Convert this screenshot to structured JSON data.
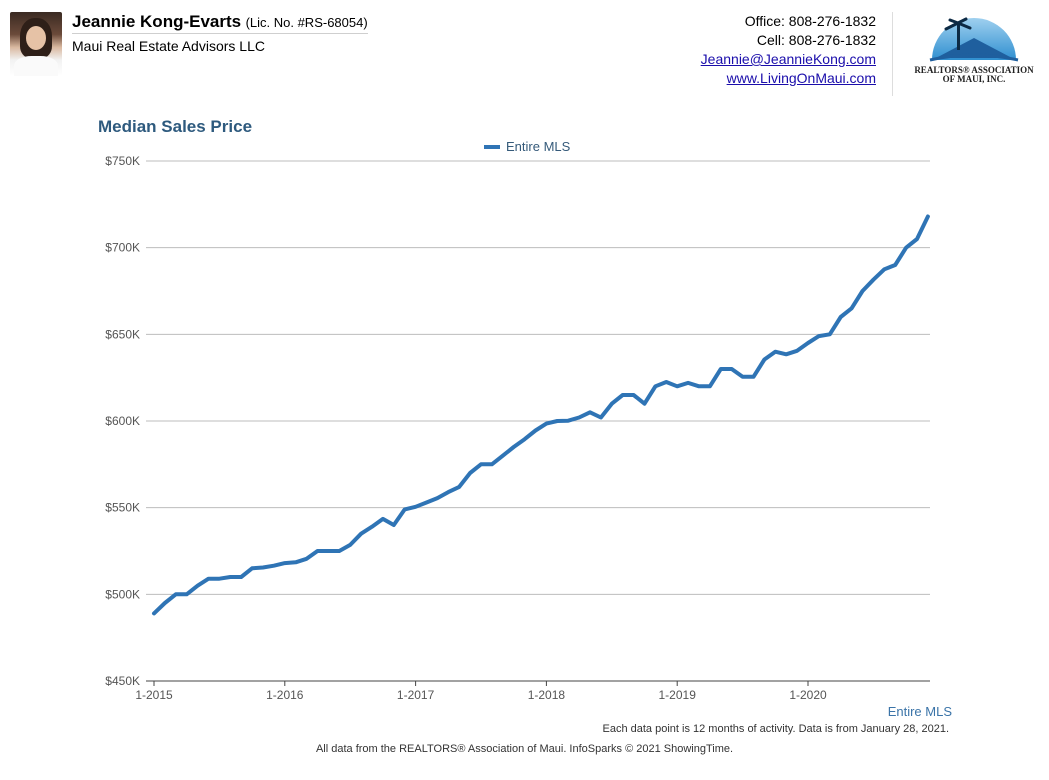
{
  "header": {
    "agent_name": "Jeannie Kong-Evarts",
    "license": "(Lic. No. #RS-68054)",
    "company": "Maui Real Estate Advisors LLC",
    "office": "Office: 808-276-1832",
    "cell": "Cell: 808-276-1832",
    "email": "Jeannie@JeannieKong.com",
    "website": "www.LivingOnMaui.com",
    "association_line1": "REALTORS® ASSOCIATION",
    "association_line2": "OF MAUI, INC."
  },
  "series_label": "Entire MLS",
  "footnote": "Each data point is 12 months of activity. Data is from January 28, 2021.",
  "footer": "All data from the REALTORS® Association of Maui. InfoSparks © 2021 ShowingTime.",
  "colors": {
    "line": "#2f74b5",
    "title": "#2e5a7e",
    "grid": "#bdbdbd"
  },
  "chart_data": {
    "type": "line",
    "title": "Median Sales Price",
    "xlabel": "",
    "ylabel": "",
    "ylim": [
      450000,
      750000
    ],
    "yticks": [
      450000,
      500000,
      550000,
      600000,
      650000,
      700000,
      750000
    ],
    "ytick_labels": [
      "$450K",
      "$500K",
      "$550K",
      "$600K",
      "$650K",
      "$700K",
      "$750K"
    ],
    "xticks": [
      "1-2015",
      "1-2016",
      "1-2017",
      "1-2018",
      "1-2019",
      "1-2020"
    ],
    "x_start": "1-2015",
    "grid": true,
    "legend": "top-center",
    "series": [
      {
        "name": "Entire MLS",
        "x": [
          "1-2015",
          "2-2015",
          "3-2015",
          "4-2015",
          "5-2015",
          "6-2015",
          "7-2015",
          "8-2015",
          "9-2015",
          "10-2015",
          "11-2015",
          "12-2015",
          "1-2016",
          "2-2016",
          "3-2016",
          "4-2016",
          "5-2016",
          "6-2016",
          "7-2016",
          "8-2016",
          "9-2016",
          "10-2016",
          "11-2016",
          "12-2016",
          "1-2017",
          "2-2017",
          "3-2017",
          "4-2017",
          "5-2017",
          "6-2017",
          "7-2017",
          "8-2017",
          "9-2017",
          "10-2017",
          "11-2017",
          "12-2017",
          "1-2018",
          "2-2018",
          "3-2018",
          "4-2018",
          "5-2018",
          "6-2018",
          "7-2018",
          "8-2018",
          "9-2018",
          "10-2018",
          "11-2018",
          "12-2018",
          "1-2019",
          "2-2019",
          "3-2019",
          "4-2019",
          "5-2019",
          "6-2019",
          "7-2019",
          "8-2019",
          "9-2019",
          "10-2019",
          "11-2019",
          "12-2019",
          "1-2020",
          "2-2020",
          "3-2020",
          "4-2020",
          "5-2020",
          "6-2020",
          "7-2020",
          "8-2020",
          "9-2020",
          "10-2020",
          "11-2020",
          "12-2020"
        ],
        "values": [
          489000,
          495000,
          500000,
          500000,
          505000,
          509000,
          509000,
          510000,
          510000,
          515000,
          515500,
          516500,
          518000,
          518500,
          520500,
          525000,
          525000,
          525000,
          528500,
          535000,
          539000,
          543500,
          540000,
          549000,
          550500,
          553000,
          555500,
          559000,
          562000,
          570000,
          575000,
          575000,
          580000,
          585000,
          589500,
          594500,
          598500,
          600000,
          600200,
          602000,
          605000,
          602000,
          610000,
          615000,
          615000,
          610000,
          620000,
          622500,
          620000,
          622000,
          620000,
          620000,
          630000,
          630000,
          625500,
          625500,
          635500,
          640000,
          638500,
          640500,
          645000,
          649000,
          650000,
          660000,
          665000,
          675000,
          681500,
          687500,
          690000,
          700000,
          705000,
          718000
        ]
      }
    ]
  }
}
